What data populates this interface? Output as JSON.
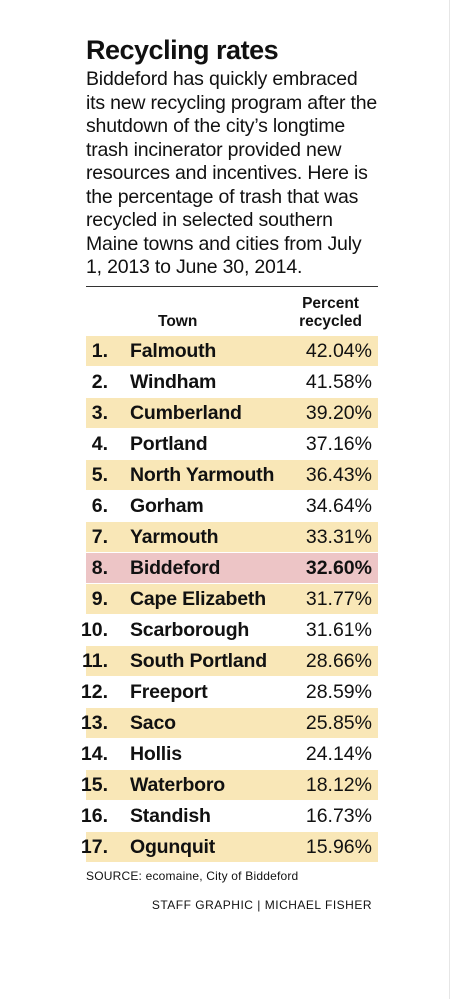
{
  "chart_data": {
    "type": "table",
    "title": "Recycling rates",
    "description": "Biddeford has quickly embraced its new recycling program after the shutdown of the city’s longtime trash incinerator provided new resources and incentives. Here is the percentage of trash that was recycled in selected southern Maine towns and cities from July 1, 2013 to June 30, 2014.",
    "columns": {
      "town": "Town",
      "percent_line1": "Percent",
      "percent_line2": "recycled"
    },
    "rows": [
      {
        "rank": "1.",
        "town": "Falmouth",
        "value": 42.04,
        "display": "42.04%"
      },
      {
        "rank": "2.",
        "town": "Windham",
        "value": 41.58,
        "display": "41.58%"
      },
      {
        "rank": "3.",
        "town": "Cumberland",
        "value": 39.2,
        "display": "39.20%"
      },
      {
        "rank": "4.",
        "town": "Portland",
        "value": 37.16,
        "display": "37.16%"
      },
      {
        "rank": "5.",
        "town": "North Yarmouth",
        "value": 36.43,
        "display": "36.43%"
      },
      {
        "rank": "6.",
        "town": "Gorham",
        "value": 34.64,
        "display": "34.64%"
      },
      {
        "rank": "7.",
        "town": "Yarmouth",
        "value": 33.31,
        "display": "33.31%"
      },
      {
        "rank": "8.",
        "town": "Biddeford",
        "value": 32.6,
        "display": "32.60%",
        "highlight": true
      },
      {
        "rank": "9.",
        "town": "Cape Elizabeth",
        "value": 31.77,
        "display": "31.77%"
      },
      {
        "rank": "10.",
        "town": "Scarborough",
        "value": 31.61,
        "display": "31.61%"
      },
      {
        "rank": "11.",
        "town": "South Portland",
        "value": 28.66,
        "display": "28.66%"
      },
      {
        "rank": "12.",
        "town": "Freeport",
        "value": 28.59,
        "display": "28.59%"
      },
      {
        "rank": "13.",
        "town": "Saco",
        "value": 25.85,
        "display": "25.85%"
      },
      {
        "rank": "14.",
        "town": "Hollis",
        "value": 24.14,
        "display": "24.14%"
      },
      {
        "rank": "15.",
        "town": "Waterboro",
        "value": 18.12,
        "display": "18.12%"
      },
      {
        "rank": "16.",
        "town": "Standish",
        "value": 16.73,
        "display": "16.73%"
      },
      {
        "rank": "17.",
        "town": "Ogunquit",
        "value": 15.96,
        "display": "15.96%"
      }
    ],
    "source": "SOURCE: ecomaine, City of Biddeford",
    "credit": "STAFF GRAPHIC | MICHAEL FISHER"
  },
  "colors": {
    "shaded_row": "#f9e7b7",
    "highlight_row": "#edc5c6"
  }
}
